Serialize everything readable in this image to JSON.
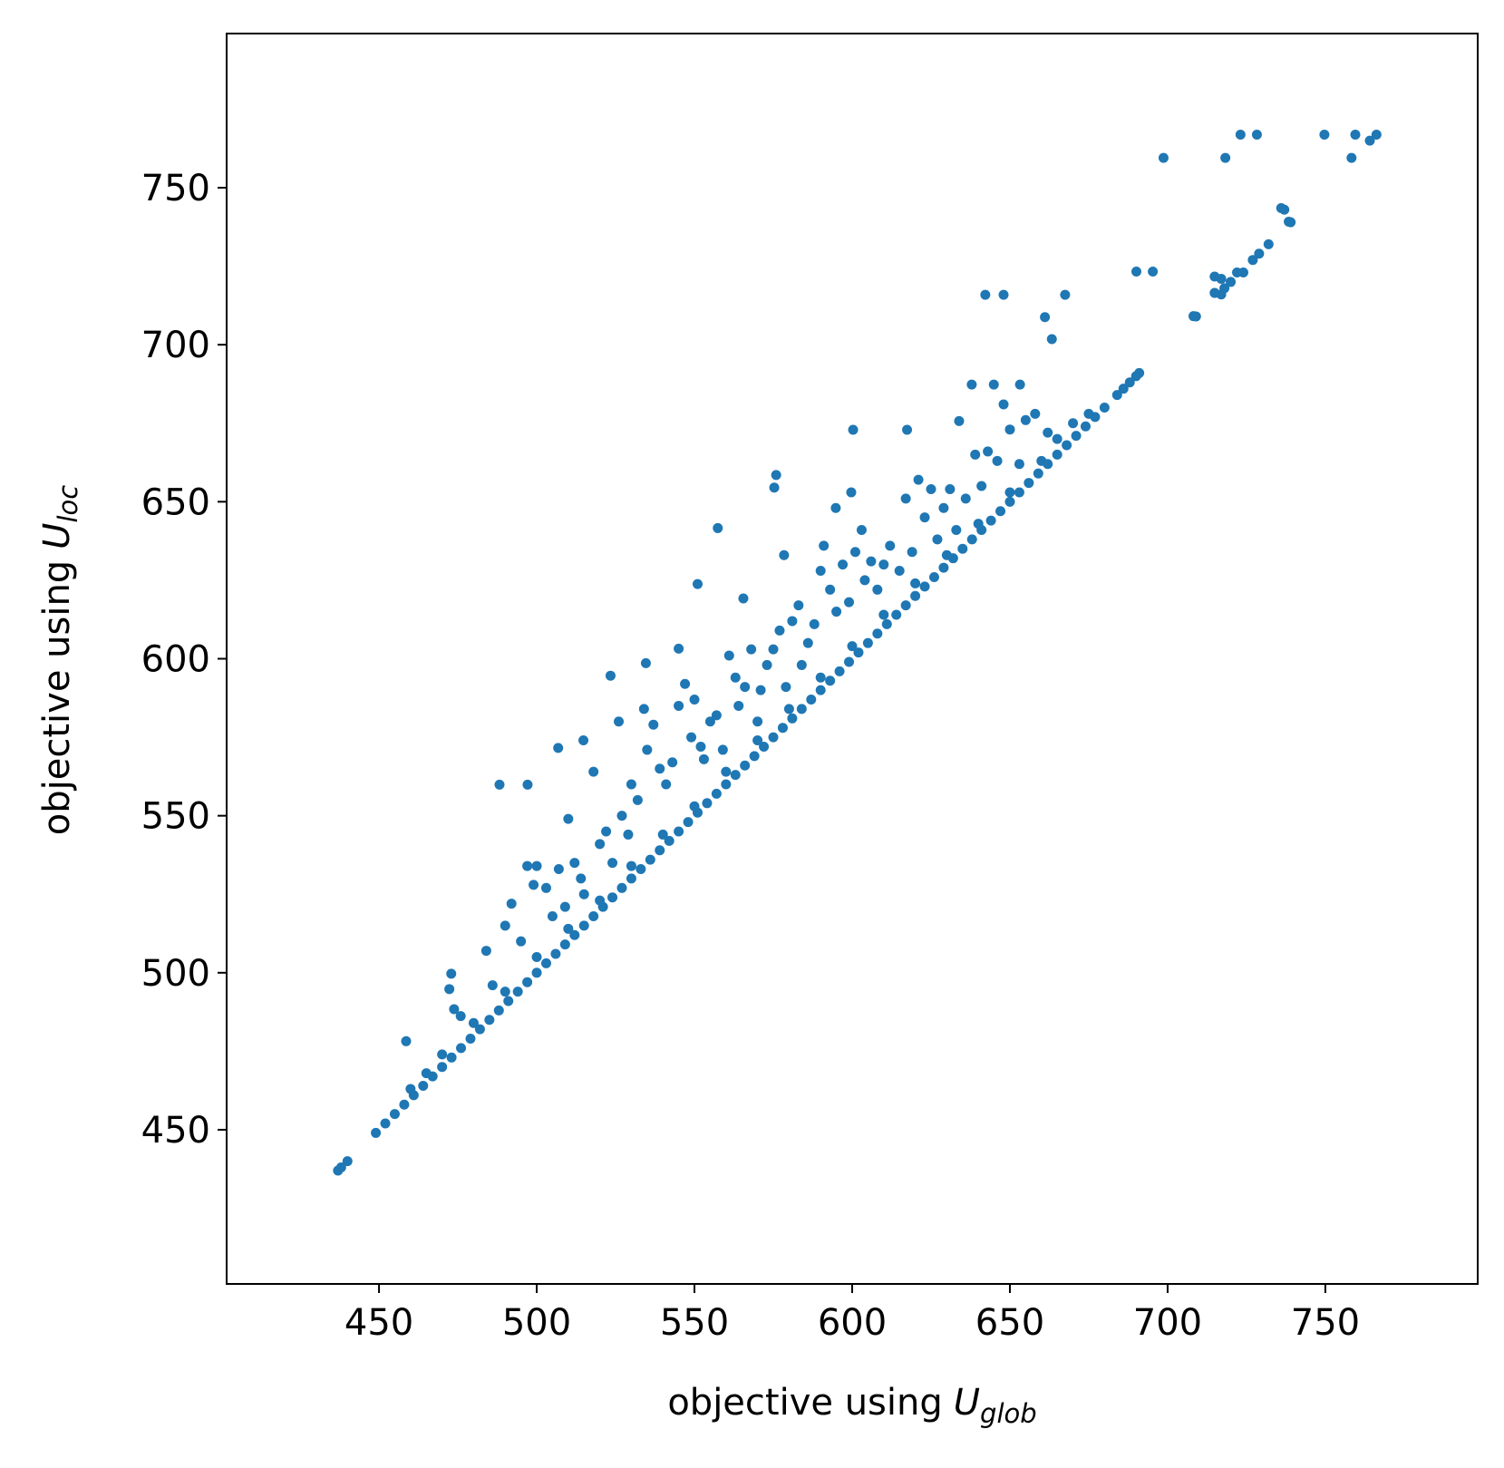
{
  "chart_data": {
    "type": "scatter",
    "x_label": {
      "text": "objective using",
      "symbol": "U",
      "subscript": "glob"
    },
    "y_label": {
      "text": "objective using",
      "symbol": "U",
      "subscript": "loc"
    },
    "xlim": [
      401.7,
      798.3
    ],
    "ylim": [
      400.9,
      799.1
    ],
    "xticks": [
      450,
      500,
      550,
      600,
      650,
      700,
      750
    ],
    "yticks": [
      450,
      500,
      550,
      600,
      650,
      700,
      750
    ],
    "color": "#1f77b4",
    "x": [
      437,
      438,
      440,
      449,
      452,
      455,
      458,
      461,
      464,
      467,
      470,
      473,
      476,
      479,
      482,
      485,
      488,
      491,
      494,
      497,
      500,
      503,
      506,
      509,
      512,
      515,
      518,
      521,
      524,
      527,
      530,
      533,
      536,
      539,
      542,
      545,
      548,
      551,
      554,
      557,
      560,
      563,
      566,
      569,
      572,
      575,
      578,
      581,
      584,
      587,
      590,
      593,
      596,
      599,
      602,
      605,
      608,
      611,
      614,
      617,
      620,
      623,
      626,
      629,
      632,
      635,
      638,
      641,
      644,
      647,
      650,
      653,
      656,
      659,
      662,
      665,
      668,
      671,
      674,
      677,
      680,
      684,
      686,
      688,
      690,
      691,
      709,
      717,
      718,
      720,
      722,
      724,
      727,
      729,
      732,
      737,
      739,
      717,
      460,
      465,
      470,
      480,
      490,
      500,
      510,
      520,
      530,
      540,
      550,
      560,
      570,
      580,
      590,
      600,
      610,
      620,
      630,
      640,
      650,
      660,
      458.6,
      472.9,
      472.3,
      473.8,
      475.9,
      488.2,
      497.1,
      506.8,
      514.8,
      523.4,
      534.6,
      545,
      551,
      557.4,
      565.5,
      575.9,
      575.3,
      578.4,
      594.8,
      600.3,
      599.7,
      617.4,
      633.9,
      637.9,
      644.9,
      653.2,
      642.2,
      648,
      667.5,
      661.1,
      663.3,
      698.7,
      690.1,
      695.3,
      708.2,
      718.3,
      723.1,
      728.3,
      749.7,
      759.5,
      758.3,
      764.1,
      766.2,
      736,
      738.4,
      714.9,
      714.9,
      484,
      486,
      490,
      492,
      495,
      497,
      499,
      500,
      503,
      505,
      507,
      509,
      510,
      512,
      514,
      515,
      518,
      520,
      522,
      524,
      526,
      527,
      529,
      530,
      532,
      534,
      535,
      537,
      539,
      541,
      543,
      545,
      547,
      549,
      550,
      552,
      553,
      555,
      557,
      559,
      561,
      563,
      564,
      566,
      568,
      570,
      571,
      573,
      575,
      577,
      579,
      581,
      583,
      584,
      586,
      588,
      590,
      591,
      593,
      595,
      597,
      599,
      601,
      603,
      604,
      606,
      608,
      610,
      612,
      615,
      617,
      619,
      621,
      623,
      625,
      627,
      629,
      631,
      633,
      636,
      639,
      641,
      643,
      646,
      648,
      650,
      653,
      655,
      658,
      662,
      665,
      670,
      675
    ],
    "values": [
      437,
      438,
      440,
      449,
      452,
      455,
      458,
      461,
      464,
      467,
      470,
      473,
      476,
      479,
      482,
      485,
      488,
      491,
      494,
      497,
      500,
      503,
      506,
      509,
      512,
      515,
      518,
      521,
      524,
      527,
      530,
      533,
      536,
      539,
      542,
      545,
      548,
      551,
      554,
      557,
      560,
      563,
      566,
      569,
      572,
      575,
      578,
      581,
      584,
      587,
      590,
      593,
      596,
      599,
      602,
      605,
      608,
      611,
      614,
      617,
      620,
      623,
      626,
      629,
      632,
      635,
      638,
      641,
      644,
      647,
      650,
      653,
      656,
      659,
      662,
      665,
      668,
      671,
      674,
      677,
      680,
      684,
      686,
      688,
      690,
      691,
      709,
      716,
      718,
      720,
      723,
      723,
      727,
      729,
      732,
      743,
      739,
      721,
      463,
      468,
      474,
      484,
      494,
      505,
      514,
      523,
      534,
      544,
      553,
      564,
      574,
      584,
      594,
      604,
      614,
      624,
      633,
      643,
      653,
      663,
      478.2,
      499.7,
      494.8,
      488.4,
      486.2,
      559.9,
      559.9,
      571.6,
      574,
      594.6,
      598.6,
      603.2,
      623.8,
      641.6,
      619.2,
      658.5,
      654.5,
      633,
      648,
      672.9,
      653,
      672.9,
      675.7,
      687.3,
      687.3,
      687.3,
      715.9,
      715.9,
      715.9,
      708.8,
      701.8,
      759.5,
      723.3,
      723.3,
      709.1,
      759.5,
      766.9,
      766.9,
      766.9,
      766.9,
      759.5,
      765,
      766.9,
      743.5,
      739.2,
      721.7,
      716.5,
      507,
      496,
      515,
      522,
      510,
      534,
      528,
      534,
      527,
      518,
      533,
      521,
      549,
      535,
      530,
      525,
      564,
      541,
      545,
      535,
      580,
      550,
      544,
      560,
      555,
      584,
      571,
      579,
      565,
      560,
      567,
      585,
      592,
      575,
      587,
      572,
      568,
      580,
      582,
      571,
      601,
      594,
      585,
      591,
      603,
      580,
      590,
      598,
      603,
      609,
      591,
      612,
      617,
      598,
      605,
      611,
      628,
      636,
      622,
      615,
      630,
      618,
      634,
      641,
      625,
      631,
      622,
      630,
      636,
      628,
      651,
      634,
      657,
      645,
      654,
      638,
      648,
      654,
      641,
      651,
      665,
      655,
      666,
      663,
      681,
      673,
      662,
      676,
      678,
      672,
      670,
      675,
      678
    ]
  }
}
